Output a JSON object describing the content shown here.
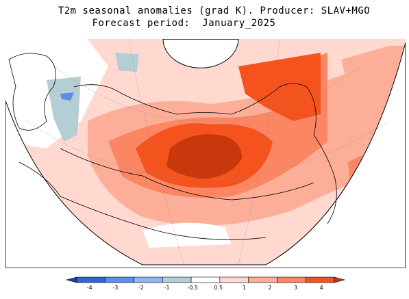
{
  "header": {
    "title_line1": "T2m seasonal anomalies (grad K). Producer: SLAV+MGO",
    "title_line2": "Forecast period:  January_2025"
  },
  "legend": {
    "ticks": [
      "-4",
      "-3",
      "-2",
      "-1",
      "-0.5",
      "0.5",
      "1",
      "2",
      "3",
      "4"
    ],
    "colors": [
      "#1f3fb0",
      "#2e66d6",
      "#5b8ee6",
      "#8eb5ef",
      "#b5cdd4",
      "#ffffff",
      "#ffd9cf",
      "#fcae98",
      "#fb8664",
      "#f5531e",
      "#c7380d"
    ]
  },
  "colors": {
    "very_warm": "#c7380d",
    "warm": "#f5531e",
    "mild": "#fb8664",
    "slight": "#fcae98",
    "faint": "#ffd9cf",
    "cool": "#b5cdd4",
    "cold": "#8eb5ef"
  }
}
